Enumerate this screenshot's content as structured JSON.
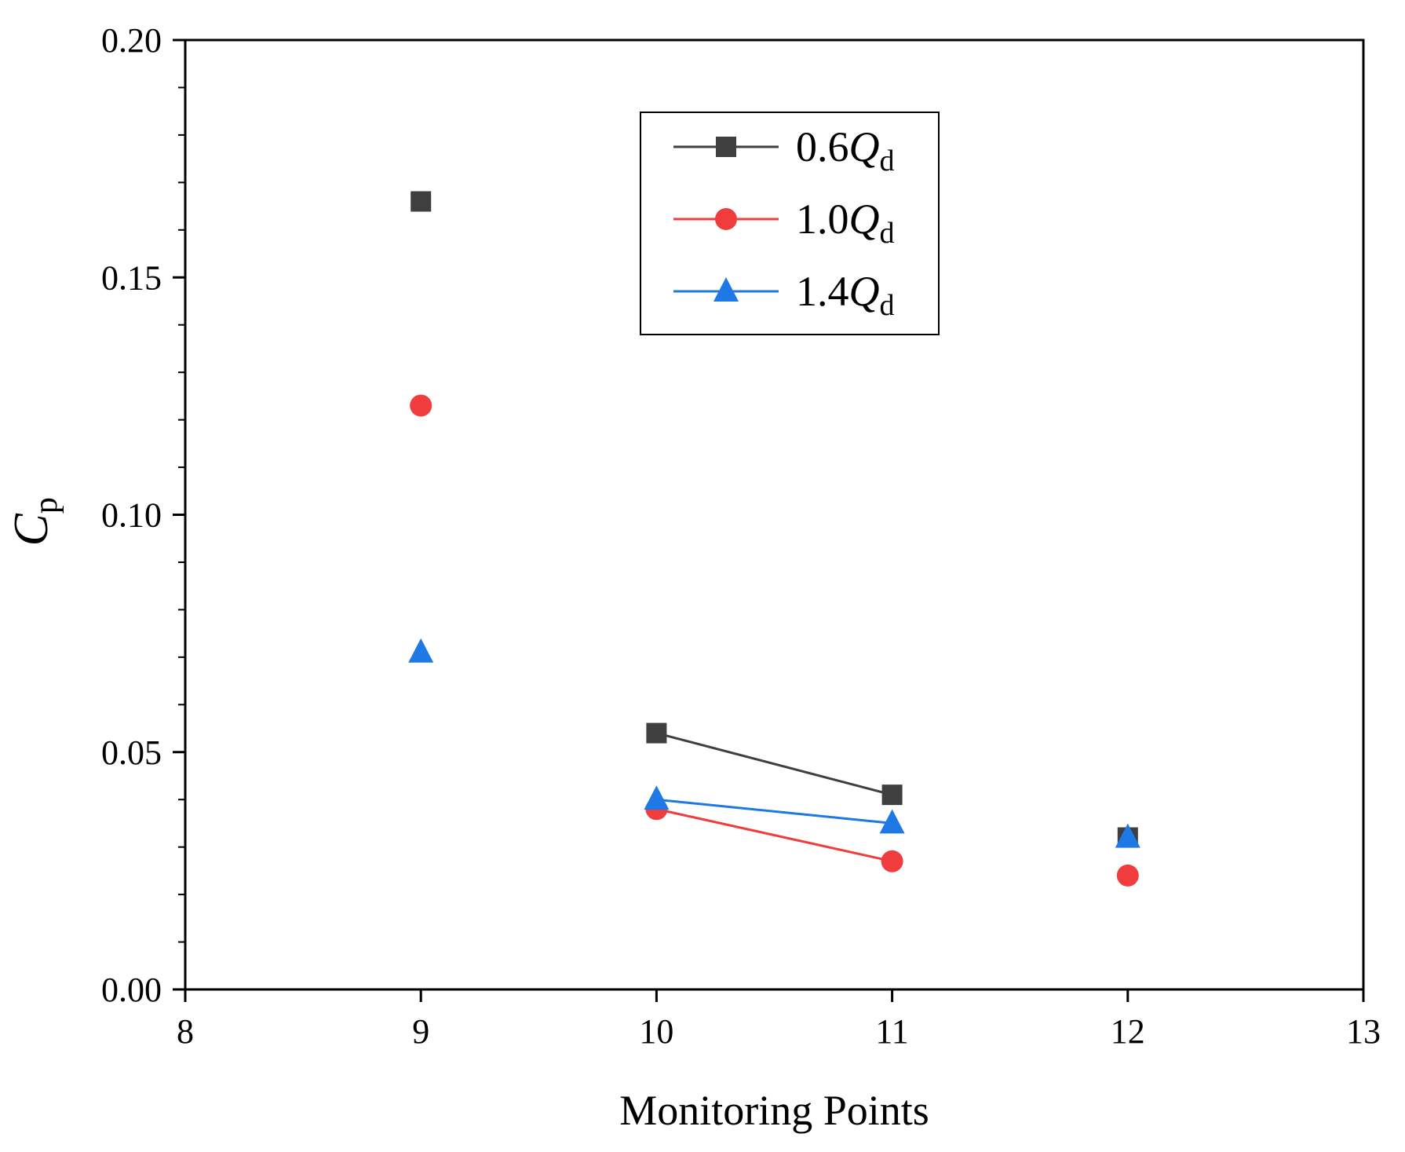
{
  "chart_data": {
    "type": "line",
    "title": "",
    "xlabel": "Monitoring Points",
    "ylabel": {
      "main": "C",
      "sub": "p"
    },
    "xlim": [
      8,
      13
    ],
    "ylim": [
      0.0,
      0.2
    ],
    "x_ticks": [
      "8",
      "9",
      "10",
      "11",
      "12",
      "13"
    ],
    "y_ticks": [
      "0.00",
      "0.05",
      "0.10",
      "0.15",
      "0.20"
    ],
    "grid": false,
    "legend_position": "top-center",
    "segments": [
      [
        10,
        11
      ]
    ],
    "series": [
      {
        "name": "0.6Qd",
        "label_prefix": "0.6",
        "label_var": "Q",
        "label_sub": "d",
        "color": "#3f3f3f",
        "marker": "square",
        "x": [
          9,
          10,
          11,
          12
        ],
        "y": [
          0.166,
          0.054,
          0.041,
          0.032
        ]
      },
      {
        "name": "1.0Qd",
        "label_prefix": "1.0",
        "label_var": "Q",
        "label_sub": "d",
        "color": "#f03c3c",
        "marker": "circle",
        "x": [
          9,
          10,
          11,
          12
        ],
        "y": [
          0.123,
          0.038,
          0.027,
          0.024
        ]
      },
      {
        "name": "1.4Qd",
        "label_prefix": "1.4",
        "label_var": "Q",
        "label_sub": "d",
        "color": "#1e78e6",
        "marker": "triangle",
        "x": [
          9,
          10,
          11,
          12
        ],
        "y": [
          0.071,
          0.04,
          0.035,
          0.032
        ]
      }
    ]
  }
}
